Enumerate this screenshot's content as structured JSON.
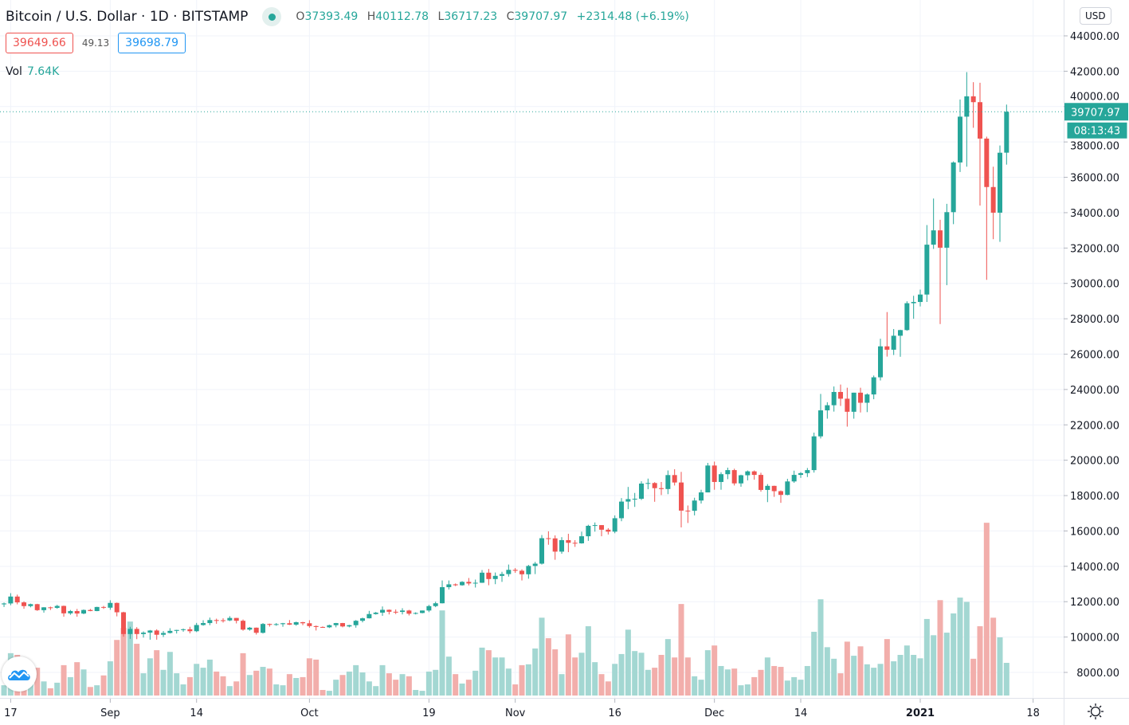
{
  "header": {
    "title": "Bitcoin / U.S. Dollar · 1D · BITSTAMP",
    "ohlc": {
      "o_label": "O",
      "o": "37393.49",
      "h_label": "H",
      "h": "40112.78",
      "l_label": "L",
      "l": "36717.23",
      "c_label": "C",
      "c": "39707.97",
      "change": "+2314.48 (+6.19%)"
    },
    "bid": "39649.66",
    "spread": "49.13",
    "ask": "39698.79",
    "vol_label": "Vol",
    "vol_value": "7.64K",
    "currency": "USD",
    "last_price_label": "39707.97",
    "countdown": "08:13:43"
  },
  "colors": {
    "up": "#26a69a",
    "down": "#ef5350",
    "up_volume": "#a3d7d2",
    "down_volume": "#f2aeab",
    "grid": "#f0f3fa",
    "text": "#131722"
  },
  "icons": {
    "logo": "tradingview-cloud-icon",
    "settings": "sun-gear-icon",
    "status": "market-open-dot-icon"
  },
  "chart_data": {
    "type": "candlestick",
    "title": "Bitcoin / U.S. Dollar · 1D · BITSTAMP",
    "yaxis": {
      "ticks": [
        44000,
        42000,
        40000,
        38000,
        36000,
        34000,
        32000,
        30000,
        28000,
        26000,
        24000,
        22000,
        20000,
        18000,
        16000,
        14000,
        12000,
        10000,
        8000
      ],
      "tick_format": "2 decimals",
      "range": [
        6700,
        44500
      ]
    },
    "xaxis_ticks": [
      {
        "date": "2020-08-17",
        "label": "17"
      },
      {
        "date": "2020-09-01",
        "label": "Sep"
      },
      {
        "date": "2020-09-14",
        "label": "14"
      },
      {
        "date": "2020-10-01",
        "label": "Oct"
      },
      {
        "date": "2020-10-19",
        "label": "19"
      },
      {
        "date": "2020-11-01",
        "label": "Nov"
      },
      {
        "date": "2020-11-16",
        "label": "16"
      },
      {
        "date": "2020-12-01",
        "label": "Dec"
      },
      {
        "date": "2020-12-14",
        "label": "14"
      },
      {
        "date": "2021-01-01",
        "label": "2021",
        "bold": true
      },
      {
        "date": "2021-01-18",
        "label": "18"
      }
    ],
    "last_price": 39707.97,
    "grid": true,
    "columns": [
      "date",
      "open",
      "high",
      "low",
      "close",
      "volume_k"
    ],
    "candles": [
      [
        "2020-08-16",
        11850,
        11950,
        11700,
        11900,
        2.4
      ],
      [
        "2020-08-17",
        11900,
        12480,
        11800,
        12290,
        9.9
      ],
      [
        "2020-08-18",
        12290,
        12400,
        11850,
        11960,
        9.5
      ],
      [
        "2020-08-19",
        11960,
        12020,
        11600,
        11750,
        5.6
      ],
      [
        "2020-08-20",
        11750,
        11890,
        11680,
        11860,
        5.2
      ],
      [
        "2020-08-21",
        11860,
        11880,
        11480,
        11520,
        6.5
      ],
      [
        "2020-08-22",
        11520,
        11690,
        11380,
        11680,
        3.3
      ],
      [
        "2020-08-23",
        11680,
        11720,
        11530,
        11650,
        1.7
      ],
      [
        "2020-08-24",
        11650,
        11820,
        11600,
        11760,
        3.0
      ],
      [
        "2020-08-25",
        11760,
        11780,
        11150,
        11340,
        7.1
      ],
      [
        "2020-08-26",
        11340,
        11530,
        11260,
        11470,
        4.3
      ],
      [
        "2020-08-27",
        11470,
        11590,
        11150,
        11330,
        7.8
      ],
      [
        "2020-08-28",
        11330,
        11560,
        11290,
        11530,
        6.1
      ],
      [
        "2020-08-29",
        11530,
        11590,
        11460,
        11470,
        2.0
      ],
      [
        "2020-08-30",
        11470,
        11710,
        11460,
        11700,
        2.4
      ],
      [
        "2020-08-31",
        11700,
        11760,
        11590,
        11660,
        4.7
      ],
      [
        "2020-09-01",
        11660,
        12080,
        11540,
        11930,
        8.0
      ],
      [
        "2020-09-02",
        11930,
        11950,
        11170,
        11400,
        13.0
      ],
      [
        "2020-09-03",
        11400,
        11430,
        10020,
        10170,
        15.8
      ],
      [
        "2020-09-04",
        10170,
        10580,
        9900,
        10460,
        17.3
      ],
      [
        "2020-09-05",
        10460,
        10560,
        9880,
        10170,
        12.1
      ],
      [
        "2020-09-06",
        10170,
        10320,
        9970,
        10250,
        5.2
      ],
      [
        "2020-09-07",
        10250,
        10400,
        9850,
        10370,
        8.7
      ],
      [
        "2020-09-08",
        10370,
        10440,
        9850,
        10130,
        10.6
      ],
      [
        "2020-09-09",
        10130,
        10340,
        10000,
        10230,
        6.0
      ],
      [
        "2020-09-10",
        10230,
        10500,
        10200,
        10350,
        10.2
      ],
      [
        "2020-09-11",
        10350,
        10410,
        10200,
        10400,
        5.2
      ],
      [
        "2020-09-12",
        10400,
        10480,
        10300,
        10440,
        2.6
      ],
      [
        "2020-09-13",
        10440,
        10580,
        10210,
        10330,
        4.3
      ],
      [
        "2020-09-14",
        10330,
        10800,
        10280,
        10680,
        7.4
      ],
      [
        "2020-09-15",
        10680,
        10950,
        10640,
        10790,
        6.5
      ],
      [
        "2020-09-16",
        10790,
        11100,
        10670,
        10960,
        8.4
      ],
      [
        "2020-09-17",
        10960,
        11040,
        10750,
        10950,
        5.6
      ],
      [
        "2020-09-18",
        10950,
        11060,
        10820,
        10940,
        4.5
      ],
      [
        "2020-09-19",
        10940,
        11180,
        10900,
        11080,
        2.2
      ],
      [
        "2020-09-20",
        11080,
        11080,
        10770,
        10920,
        3.3
      ],
      [
        "2020-09-21",
        10920,
        10990,
        10360,
        10420,
        9.9
      ],
      [
        "2020-09-22",
        10420,
        10570,
        10360,
        10530,
        4.8
      ],
      [
        "2020-09-23",
        10530,
        10540,
        10140,
        10240,
        5.8
      ],
      [
        "2020-09-24",
        10240,
        10790,
        10200,
        10740,
        6.7
      ],
      [
        "2020-09-25",
        10740,
        10760,
        10590,
        10690,
        6.3
      ],
      [
        "2020-09-26",
        10690,
        10790,
        10640,
        10730,
        2.6
      ],
      [
        "2020-09-27",
        10730,
        10800,
        10580,
        10780,
        2.4
      ],
      [
        "2020-09-28",
        10780,
        10960,
        10680,
        10700,
        5.0
      ],
      [
        "2020-09-29",
        10700,
        10870,
        10640,
        10840,
        4.1
      ],
      [
        "2020-09-30",
        10840,
        10860,
        10670,
        10780,
        4.3
      ],
      [
        "2020-10-01",
        10780,
        10950,
        10530,
        10620,
        8.7
      ],
      [
        "2020-10-02",
        10620,
        10650,
        10370,
        10570,
        8.4
      ],
      [
        "2020-10-03",
        10570,
        10600,
        10520,
        10550,
        1.3
      ],
      [
        "2020-10-04",
        10550,
        10700,
        10510,
        10670,
        1.1
      ],
      [
        "2020-10-05",
        10670,
        10800,
        10550,
        10790,
        3.7
      ],
      [
        "2020-10-06",
        10790,
        10800,
        10550,
        10600,
        4.8
      ],
      [
        "2020-10-07",
        10600,
        10690,
        10550,
        10670,
        5.6
      ],
      [
        "2020-10-08",
        10670,
        10960,
        10530,
        10920,
        7.1
      ],
      [
        "2020-10-09",
        10920,
        11100,
        10830,
        11060,
        5.4
      ],
      [
        "2020-10-10",
        11060,
        11480,
        11050,
        11300,
        3.3
      ],
      [
        "2020-10-11",
        11300,
        11420,
        11270,
        11380,
        2.2
      ],
      [
        "2020-10-12",
        11380,
        11730,
        11200,
        11540,
        7.1
      ],
      [
        "2020-10-13",
        11540,
        11560,
        11280,
        11430,
        5.2
      ],
      [
        "2020-10-14",
        11430,
        11560,
        11300,
        11420,
        3.7
      ],
      [
        "2020-10-15",
        11420,
        11630,
        11280,
        11500,
        5.0
      ],
      [
        "2020-10-16",
        11500,
        11540,
        11220,
        11320,
        4.5
      ],
      [
        "2020-10-17",
        11320,
        11400,
        11280,
        11360,
        1.3
      ],
      [
        "2020-10-18",
        11360,
        11500,
        11340,
        11500,
        1.1
      ],
      [
        "2020-10-19",
        11500,
        11820,
        11410,
        11750,
        5.6
      ],
      [
        "2020-10-20",
        11750,
        12000,
        11690,
        11910,
        6.0
      ],
      [
        "2020-10-21",
        11910,
        13200,
        11900,
        12820,
        19.9
      ],
      [
        "2020-10-22",
        12820,
        13200,
        12690,
        12980,
        9.1
      ],
      [
        "2020-10-23",
        12980,
        13030,
        12880,
        12930,
        5.0
      ],
      [
        "2020-10-24",
        12930,
        13160,
        12900,
        13120,
        2.8
      ],
      [
        "2020-10-25",
        13120,
        13340,
        12920,
        13030,
        3.7
      ],
      [
        "2020-10-26",
        13030,
        13250,
        12800,
        13070,
        5.8
      ],
      [
        "2020-10-27",
        13070,
        13790,
        13060,
        13640,
        11.2
      ],
      [
        "2020-10-28",
        13640,
        13850,
        12930,
        13280,
        10.6
      ],
      [
        "2020-10-29",
        13280,
        13650,
        12990,
        13460,
        8.9
      ],
      [
        "2020-10-30",
        13460,
        13690,
        13120,
        13560,
        8.9
      ],
      [
        "2020-10-31",
        13560,
        14100,
        13420,
        13800,
        6.3
      ],
      [
        "2020-11-01",
        13800,
        13900,
        13630,
        13750,
        2.6
      ],
      [
        "2020-11-02",
        13750,
        13830,
        13200,
        13550,
        7.1
      ],
      [
        "2020-11-03",
        13550,
        14080,
        13300,
        14020,
        7.3
      ],
      [
        "2020-11-04",
        14020,
        14250,
        13560,
        14150,
        11.0
      ],
      [
        "2020-11-05",
        14150,
        15770,
        14100,
        15590,
        18.2
      ],
      [
        "2020-11-06",
        15590,
        15980,
        15220,
        15580,
        13.4
      ],
      [
        "2020-11-07",
        15580,
        15750,
        14370,
        14830,
        10.8
      ],
      [
        "2020-11-08",
        14830,
        15650,
        14710,
        15480,
        5.0
      ],
      [
        "2020-11-09",
        15480,
        15840,
        14800,
        15330,
        14.3
      ],
      [
        "2020-11-10",
        15330,
        15480,
        15100,
        15300,
        8.9
      ],
      [
        "2020-11-11",
        15300,
        15960,
        15280,
        15700,
        10.0
      ],
      [
        "2020-11-12",
        15700,
        16350,
        15440,
        16290,
        16.2
      ],
      [
        "2020-11-13",
        16290,
        16480,
        15960,
        16330,
        7.8
      ],
      [
        "2020-11-14",
        16330,
        16330,
        15700,
        16070,
        5.0
      ],
      [
        "2020-11-15",
        16070,
        16160,
        15800,
        15960,
        3.3
      ],
      [
        "2020-11-16",
        15960,
        16880,
        15870,
        16720,
        7.4
      ],
      [
        "2020-11-17",
        16720,
        17860,
        16550,
        17660,
        9.7
      ],
      [
        "2020-11-18",
        17660,
        18490,
        17230,
        17800,
        15.4
      ],
      [
        "2020-11-19",
        17800,
        18150,
        17360,
        17820,
        10.4
      ],
      [
        "2020-11-20",
        17820,
        18810,
        17750,
        18680,
        10.0
      ],
      [
        "2020-11-21",
        18680,
        18960,
        18360,
        18710,
        6.0
      ],
      [
        "2020-11-22",
        18710,
        18760,
        17650,
        18420,
        6.5
      ],
      [
        "2020-11-23",
        18420,
        18770,
        18030,
        18370,
        9.5
      ],
      [
        "2020-11-24",
        18370,
        19420,
        18080,
        19160,
        13.2
      ],
      [
        "2020-11-25",
        19160,
        19490,
        18570,
        18740,
        8.9
      ],
      [
        "2020-11-26",
        18740,
        19340,
        16200,
        17150,
        21.4
      ],
      [
        "2020-11-27",
        17150,
        17440,
        16450,
        17140,
        8.9
      ],
      [
        "2020-11-28",
        17140,
        17880,
        16880,
        17720,
        4.5
      ],
      [
        "2020-11-29",
        17720,
        18330,
        17550,
        18180,
        3.7
      ],
      [
        "2020-11-30",
        18180,
        19850,
        18180,
        19700,
        10.6
      ],
      [
        "2020-12-01",
        19700,
        19920,
        18330,
        18770,
        11.7
      ],
      [
        "2020-12-02",
        18770,
        19320,
        18330,
        19210,
        6.9
      ],
      [
        "2020-12-03",
        19210,
        19580,
        18930,
        19440,
        6.1
      ],
      [
        "2020-12-04",
        19440,
        19520,
        18570,
        18690,
        6.3
      ],
      [
        "2020-12-05",
        18690,
        19180,
        18500,
        19150,
        2.4
      ],
      [
        "2020-12-06",
        19150,
        19420,
        18860,
        19370,
        2.6
      ],
      [
        "2020-12-07",
        19370,
        19420,
        18900,
        19170,
        4.3
      ],
      [
        "2020-12-08",
        19170,
        19290,
        18220,
        18320,
        6.0
      ],
      [
        "2020-12-09",
        18320,
        18650,
        17630,
        18550,
        8.9
      ],
      [
        "2020-12-10",
        18550,
        18560,
        17930,
        18250,
        6.9
      ],
      [
        "2020-12-11",
        18250,
        18290,
        17590,
        18040,
        6.7
      ],
      [
        "2020-12-12",
        18040,
        18950,
        18020,
        18800,
        3.5
      ],
      [
        "2020-12-13",
        18800,
        19410,
        18720,
        19170,
        4.3
      ],
      [
        "2020-12-14",
        19170,
        19330,
        19000,
        19270,
        3.7
      ],
      [
        "2020-12-15",
        19270,
        19560,
        19050,
        19440,
        6.9
      ],
      [
        "2020-12-16",
        19440,
        21560,
        19300,
        21350,
        14.9
      ],
      [
        "2020-12-17",
        21350,
        23750,
        21230,
        22820,
        22.5
      ],
      [
        "2020-12-18",
        22820,
        23280,
        22350,
        23110,
        11.3
      ],
      [
        "2020-12-19",
        23110,
        24170,
        22750,
        23860,
        8.6
      ],
      [
        "2020-12-20",
        23860,
        24280,
        23070,
        23480,
        5.2
      ],
      [
        "2020-12-21",
        23480,
        24100,
        21900,
        22740,
        12.6
      ],
      [
        "2020-12-22",
        22740,
        23820,
        22350,
        23820,
        9.3
      ],
      [
        "2020-12-23",
        23820,
        24100,
        22700,
        23250,
        11.5
      ],
      [
        "2020-12-24",
        23250,
        23780,
        22720,
        23720,
        7.3
      ],
      [
        "2020-12-25",
        23720,
        24790,
        23450,
        24690,
        6.5
      ],
      [
        "2020-12-26",
        24690,
        26870,
        24510,
        26440,
        7.4
      ],
      [
        "2020-12-27",
        26440,
        28380,
        25860,
        26250,
        13.2
      ],
      [
        "2020-12-28",
        26250,
        27420,
        25950,
        27040,
        8.0
      ],
      [
        "2020-12-29",
        27040,
        27380,
        25850,
        27360,
        9.5
      ],
      [
        "2020-12-30",
        27360,
        28990,
        27320,
        28880,
        11.7
      ],
      [
        "2020-12-31",
        28880,
        29300,
        28000,
        28950,
        9.5
      ],
      [
        "2021-01-01",
        28950,
        29650,
        28700,
        29370,
        8.7
      ],
      [
        "2021-01-02",
        29370,
        33300,
        28950,
        32190,
        17.9
      ],
      [
        "2021-01-03",
        32190,
        34800,
        31950,
        33000,
        14.1
      ],
      [
        "2021-01-04",
        33000,
        33600,
        27700,
        32020,
        22.3
      ],
      [
        "2021-01-05",
        32020,
        34500,
        29900,
        34030,
        14.7
      ],
      [
        "2021-01-06",
        34030,
        36900,
        33350,
        36840,
        19.2
      ],
      [
        "2021-01-07",
        36840,
        40400,
        36300,
        39430,
        22.9
      ],
      [
        "2021-01-08",
        39430,
        41950,
        36600,
        40580,
        21.9
      ],
      [
        "2021-01-09",
        40580,
        41380,
        38800,
        40250,
        8.6
      ],
      [
        "2021-01-10",
        40250,
        41350,
        34400,
        38190,
        16.2
      ],
      [
        "2021-01-11",
        38190,
        38300,
        30200,
        35450,
        40.4
      ],
      [
        "2021-01-12",
        35450,
        36600,
        32500,
        34000,
        18.2
      ],
      [
        "2021-01-13",
        34000,
        37800,
        32350,
        37390,
        13.6
      ],
      [
        "2021-01-14",
        37393.49,
        40112.78,
        36717.23,
        39707.97,
        7.64
      ]
    ]
  }
}
